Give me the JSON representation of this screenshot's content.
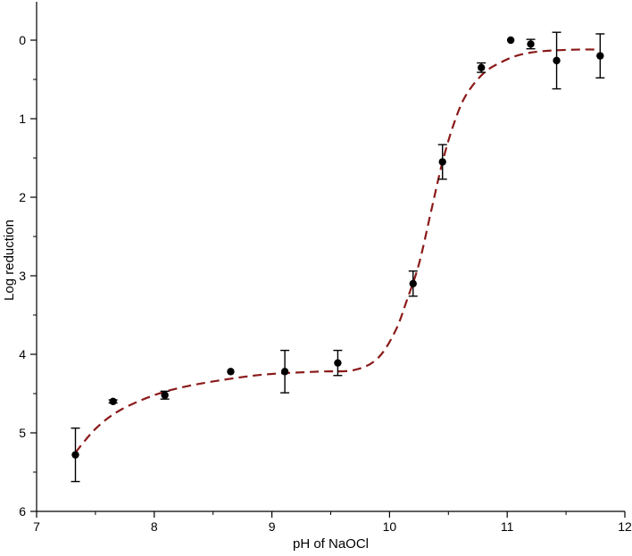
{
  "chart_data": {
    "type": "scatter",
    "title": "",
    "xlabel": "pH of NaOCl",
    "ylabel": "Log reduction",
    "xlim": [
      7,
      12
    ],
    "ylim": [
      0,
      6
    ],
    "y_inverted": true,
    "x_ticks": [
      7,
      8,
      9,
      10,
      11,
      12
    ],
    "y_ticks": [
      0,
      1,
      2,
      3,
      4,
      5,
      6
    ],
    "grid": false,
    "legend": "none",
    "points": [
      {
        "x": 7.33,
        "y": 5.28,
        "err": 0.34
      },
      {
        "x": 7.65,
        "y": 4.6,
        "err": 0.02
      },
      {
        "x": 8.09,
        "y": 4.52,
        "err": 0.05
      },
      {
        "x": 8.65,
        "y": 4.22,
        "err": 0
      },
      {
        "x": 9.11,
        "y": 4.22,
        "err": 0.27
      },
      {
        "x": 9.56,
        "y": 4.11,
        "err": 0.16
      },
      {
        "x": 10.2,
        "y": 3.1,
        "err": 0.16
      },
      {
        "x": 10.45,
        "y": 1.55,
        "err": 0.22
      },
      {
        "x": 10.78,
        "y": 0.35,
        "err": 0.06
      },
      {
        "x": 11.03,
        "y": 0.0,
        "err": 0
      },
      {
        "x": 11.2,
        "y": 0.05,
        "err": 0.06
      },
      {
        "x": 11.42,
        "y": 0.26,
        "err": 0.36
      },
      {
        "x": 11.79,
        "y": 0.2,
        "err": 0.28
      }
    ],
    "fit_curve": {
      "style": "dashed",
      "color": "#8b1a1a",
      "x": [
        7.33,
        7.5,
        7.7,
        8.0,
        8.3,
        8.7,
        9.0,
        9.4,
        9.7,
        9.9,
        10.05,
        10.15,
        10.25,
        10.35,
        10.45,
        10.55,
        10.65,
        10.8,
        10.95,
        11.1,
        11.3,
        11.6,
        11.79
      ],
      "y": [
        5.25,
        4.95,
        4.72,
        4.52,
        4.4,
        4.3,
        4.25,
        4.22,
        4.2,
        4.05,
        3.7,
        3.3,
        2.85,
        2.2,
        1.55,
        1.05,
        0.7,
        0.42,
        0.28,
        0.19,
        0.14,
        0.12,
        0.12
      ]
    },
    "marker_color": "#000000"
  }
}
